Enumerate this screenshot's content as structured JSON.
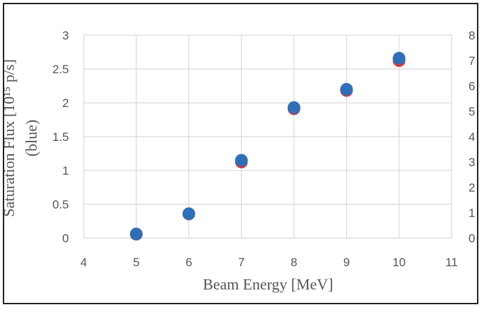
{
  "chart_data": {
    "type": "scatter",
    "title": "",
    "xlabel": "Beam Energy [MeV]",
    "ylabel_left": "(blue)",
    "ylabel_left_extra": "Saturation Flux [10¹⁵ p/s]",
    "xlim": [
      4,
      11
    ],
    "ylim_left": [
      0,
      3
    ],
    "ylim_right": [
      0,
      8
    ],
    "x_ticks": [
      "4",
      "5",
      "6",
      "7",
      "8",
      "9",
      "10",
      "11"
    ],
    "y_ticks_left": [
      "0",
      "0.5",
      "1",
      "1.5",
      "2",
      "2.5",
      "3"
    ],
    "y_ticks_right": [
      "0",
      "1",
      "2",
      "3",
      "4",
      "5",
      "6",
      "7",
      "8"
    ],
    "grid": true,
    "series": [
      {
        "axis": "right",
        "color": "#d9363e",
        "x": [
          5,
          6,
          7,
          8,
          9,
          10
        ],
        "y": [
          0.15,
          0.95,
          3.0,
          5.1,
          5.82,
          7.0
        ]
      },
      {
        "axis": "left",
        "color": "#2f6fb8",
        "x": [
          5,
          6,
          7,
          8,
          9,
          10
        ],
        "y": [
          0.06,
          0.36,
          1.15,
          1.93,
          2.2,
          2.66
        ]
      }
    ]
  }
}
